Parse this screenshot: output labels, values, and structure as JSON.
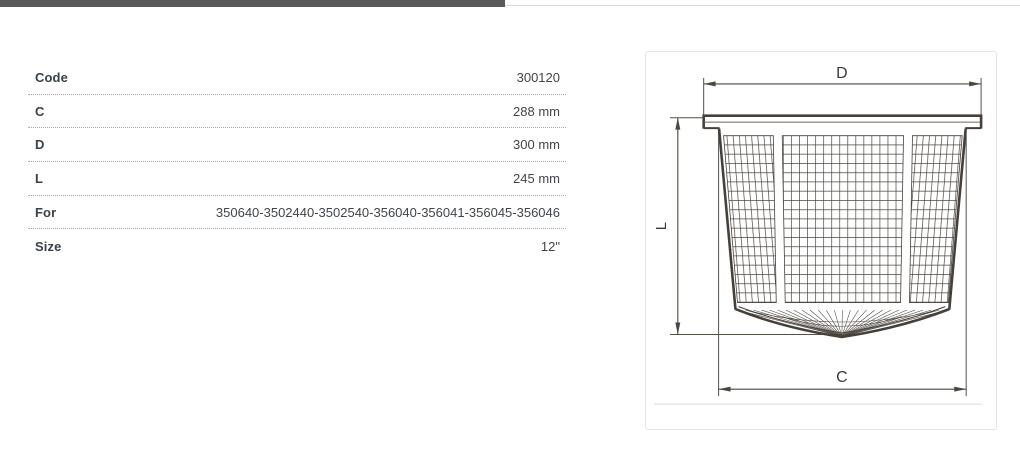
{
  "spec_table": {
    "rows": [
      {
        "label": "Code",
        "value": "300120"
      },
      {
        "label": "C",
        "value": "288 mm"
      },
      {
        "label": "D",
        "value": "300 mm"
      },
      {
        "label": "L",
        "value": "245 mm"
      },
      {
        "label": "For",
        "value": "350640-3502440-3502540-356040-356041-356045-356046"
      },
      {
        "label": "Size",
        "value": "12\""
      }
    ]
  },
  "diagram": {
    "labels": {
      "top": "D",
      "left": "L",
      "bottom": "C"
    }
  },
  "colors": {
    "top_bar": "#595959",
    "top_bar_line": "#d8d8d8",
    "card_border": "#e5e5e5",
    "drawing_line": "#46403a",
    "dimension_line": "#4c463f",
    "card_separator": "#dadada",
    "row_divider": "#ababab",
    "label_text": "#39414a",
    "value_text": "#40454b"
  }
}
